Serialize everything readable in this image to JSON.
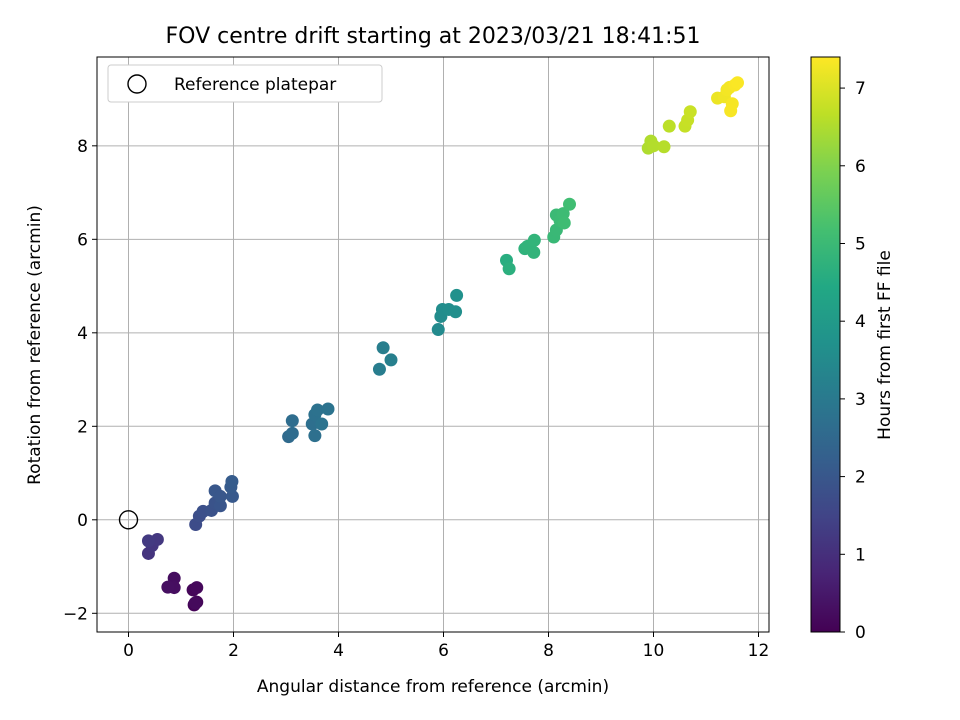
{
  "chart_data": {
    "type": "scatter",
    "title": "FOV centre drift starting at 2023/03/21 18:41:51",
    "xlabel": "Angular distance from reference (arcmin)",
    "ylabel": "Rotation from reference (arcmin)",
    "xlim": [
      -0.6,
      12.2
    ],
    "ylim": [
      -2.4,
      9.9
    ],
    "xticks": [
      0,
      2,
      4,
      6,
      8,
      10,
      12
    ],
    "yticks": [
      -2,
      0,
      2,
      4,
      6,
      8
    ],
    "grid": true,
    "legend": {
      "position": "upper-left",
      "entries": [
        "Reference platepar"
      ]
    },
    "reference_point": {
      "x": 0,
      "y": 0
    },
    "colorbar": {
      "label": "Hours from first FF file",
      "range": [
        0,
        7.4
      ],
      "ticks": [
        0,
        1,
        2,
        3,
        4,
        5,
        6,
        7
      ],
      "colormap": "viridis"
    },
    "points": [
      {
        "x": 1.25,
        "y": -1.82,
        "t": 0.05
      },
      {
        "x": 1.3,
        "y": -1.76,
        "t": 0.1
      },
      {
        "x": 1.23,
        "y": -1.5,
        "t": 0.12
      },
      {
        "x": 1.3,
        "y": -1.45,
        "t": 0.15
      },
      {
        "x": 1.27,
        "y": -1.78,
        "t": 0.18
      },
      {
        "x": 0.87,
        "y": -1.25,
        "t": 0.25
      },
      {
        "x": 0.87,
        "y": -1.45,
        "t": 0.28
      },
      {
        "x": 0.75,
        "y": -1.44,
        "t": 0.3
      },
      {
        "x": 0.38,
        "y": -0.72,
        "t": 1.1
      },
      {
        "x": 0.45,
        "y": -0.55,
        "t": 1.15
      },
      {
        "x": 0.55,
        "y": -0.42,
        "t": 1.2
      },
      {
        "x": 0.38,
        "y": -0.45,
        "t": 1.25
      },
      {
        "x": 1.28,
        "y": -0.1,
        "t": 1.7
      },
      {
        "x": 1.35,
        "y": 0.08,
        "t": 1.75
      },
      {
        "x": 1.42,
        "y": 0.18,
        "t": 1.8
      },
      {
        "x": 1.58,
        "y": 0.2,
        "t": 1.85
      },
      {
        "x": 1.65,
        "y": 0.36,
        "t": 1.9
      },
      {
        "x": 1.75,
        "y": 0.3,
        "t": 1.95
      },
      {
        "x": 1.65,
        "y": 0.62,
        "t": 2.0
      },
      {
        "x": 1.75,
        "y": 0.5,
        "t": 2.0
      },
      {
        "x": 1.98,
        "y": 0.5,
        "t": 2.05
      },
      {
        "x": 1.95,
        "y": 0.7,
        "t": 2.1
      },
      {
        "x": 1.97,
        "y": 0.82,
        "t": 2.15
      },
      {
        "x": 3.05,
        "y": 1.78,
        "t": 2.55
      },
      {
        "x": 3.12,
        "y": 1.85,
        "t": 2.6
      },
      {
        "x": 3.12,
        "y": 2.12,
        "t": 2.62
      },
      {
        "x": 3.5,
        "y": 2.05,
        "t": 2.7
      },
      {
        "x": 3.55,
        "y": 1.8,
        "t": 2.72
      },
      {
        "x": 3.55,
        "y": 2.25,
        "t": 2.75
      },
      {
        "x": 3.6,
        "y": 2.35,
        "t": 2.78
      },
      {
        "x": 3.68,
        "y": 2.05,
        "t": 2.8
      },
      {
        "x": 3.8,
        "y": 2.37,
        "t": 2.82
      },
      {
        "x": 4.78,
        "y": 3.22,
        "t": 3.1
      },
      {
        "x": 4.85,
        "y": 3.68,
        "t": 3.15
      },
      {
        "x": 5.0,
        "y": 3.42,
        "t": 3.18
      },
      {
        "x": 5.9,
        "y": 4.07,
        "t": 3.5
      },
      {
        "x": 5.95,
        "y": 4.35,
        "t": 3.55
      },
      {
        "x": 5.98,
        "y": 4.5,
        "t": 3.58
      },
      {
        "x": 6.1,
        "y": 4.5,
        "t": 3.6
      },
      {
        "x": 6.23,
        "y": 4.45,
        "t": 3.65
      },
      {
        "x": 6.25,
        "y": 4.8,
        "t": 3.7
      },
      {
        "x": 7.2,
        "y": 5.55,
        "t": 4.6
      },
      {
        "x": 7.25,
        "y": 5.37,
        "t": 4.65
      },
      {
        "x": 7.55,
        "y": 5.8,
        "t": 4.75
      },
      {
        "x": 7.6,
        "y": 5.85,
        "t": 4.78
      },
      {
        "x": 7.72,
        "y": 5.72,
        "t": 4.8
      },
      {
        "x": 7.73,
        "y": 5.98,
        "t": 4.82
      },
      {
        "x": 8.1,
        "y": 6.05,
        "t": 4.95
      },
      {
        "x": 8.15,
        "y": 6.2,
        "t": 4.97
      },
      {
        "x": 8.15,
        "y": 6.52,
        "t": 5.0
      },
      {
        "x": 8.22,
        "y": 6.4,
        "t": 5.02
      },
      {
        "x": 8.28,
        "y": 6.55,
        "t": 5.05
      },
      {
        "x": 8.3,
        "y": 6.35,
        "t": 5.08
      },
      {
        "x": 8.4,
        "y": 6.75,
        "t": 5.1
      },
      {
        "x": 9.9,
        "y": 7.95,
        "t": 6.5
      },
      {
        "x": 9.95,
        "y": 8.1,
        "t": 6.52
      },
      {
        "x": 10.0,
        "y": 8.0,
        "t": 6.55
      },
      {
        "x": 10.2,
        "y": 7.98,
        "t": 6.58
      },
      {
        "x": 10.3,
        "y": 8.42,
        "t": 6.65
      },
      {
        "x": 10.6,
        "y": 8.42,
        "t": 6.75
      },
      {
        "x": 10.65,
        "y": 8.55,
        "t": 6.78
      },
      {
        "x": 10.7,
        "y": 8.73,
        "t": 6.8
      },
      {
        "x": 11.22,
        "y": 9.02,
        "t": 7.2
      },
      {
        "x": 11.35,
        "y": 9.05,
        "t": 7.25
      },
      {
        "x": 11.4,
        "y": 9.2,
        "t": 7.28
      },
      {
        "x": 11.45,
        "y": 9.25,
        "t": 7.3
      },
      {
        "x": 11.5,
        "y": 8.9,
        "t": 7.32
      },
      {
        "x": 11.47,
        "y": 8.75,
        "t": 7.33
      },
      {
        "x": 11.55,
        "y": 9.3,
        "t": 7.35
      },
      {
        "x": 11.6,
        "y": 9.35,
        "t": 7.37
      }
    ]
  }
}
